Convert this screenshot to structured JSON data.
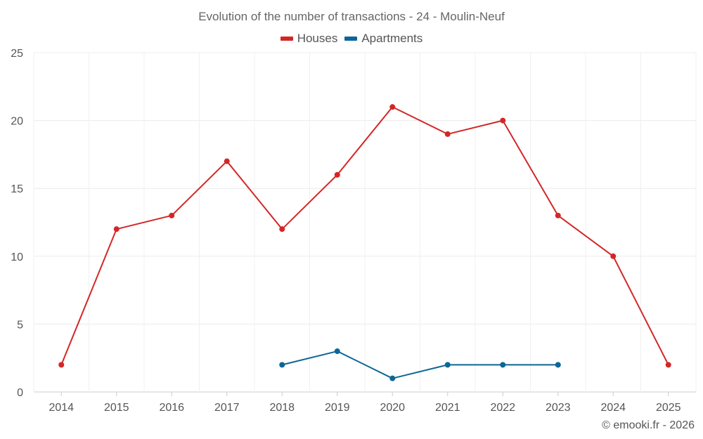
{
  "chart_data": {
    "type": "line",
    "title": "Evolution of the number of transactions - 24 - Moulin-Neuf",
    "xlabel": "",
    "ylabel": "",
    "categories": [
      "2014",
      "2015",
      "2016",
      "2017",
      "2018",
      "2019",
      "2020",
      "2021",
      "2022",
      "2023",
      "2024",
      "2025"
    ],
    "ylim": [
      0,
      25
    ],
    "yticks": [
      0,
      5,
      10,
      15,
      20,
      25
    ],
    "grid": true,
    "legend_position": "top-center",
    "series": [
      {
        "name": "Houses",
        "color": "#d32727",
        "values": [
          2,
          12,
          13,
          17,
          12,
          16,
          21,
          19,
          20,
          13,
          10,
          2
        ]
      },
      {
        "name": "Apartments",
        "color": "#0d6697",
        "values": [
          null,
          null,
          null,
          null,
          2,
          3,
          1,
          2,
          2,
          2,
          null,
          null
        ]
      }
    ]
  },
  "footer": {
    "credit": "© emooki.fr - 2026"
  }
}
